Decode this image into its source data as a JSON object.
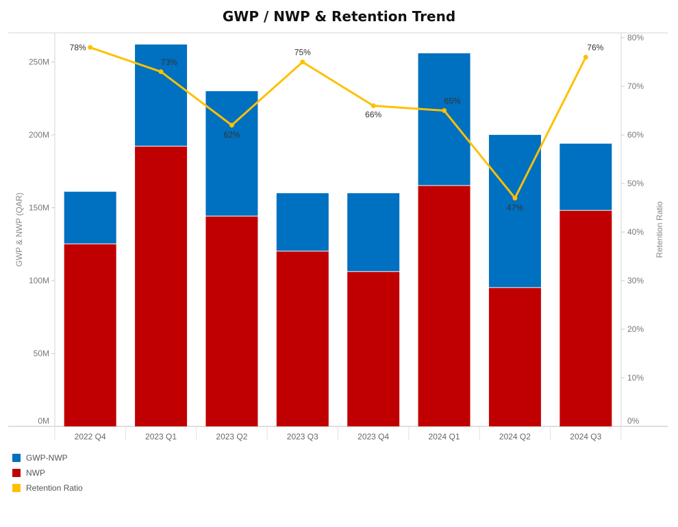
{
  "chart_data": {
    "type": "bar",
    "title": "GWP / NWP & Retention Trend",
    "ylabel": "GWP & NWP (QAR)",
    "y2label": "Retention Ratio",
    "ylim": [
      0,
      270000000
    ],
    "y2lim": [
      0,
      0.81
    ],
    "yticks": [
      0,
      50000000,
      100000000,
      150000000,
      200000000,
      250000000
    ],
    "ytick_labels": [
      "0M",
      "50M",
      "100M",
      "150M",
      "200M",
      "250M"
    ],
    "y2ticks": [
      0,
      0.1,
      0.2,
      0.3,
      0.4,
      0.5,
      0.6,
      0.7,
      0.8
    ],
    "y2tick_labels": [
      "0%",
      "10%",
      "20%",
      "30%",
      "40%",
      "50%",
      "60%",
      "70%",
      "80%"
    ],
    "categories": [
      "2022 Q4",
      "2023 Q1",
      "2023 Q2",
      "2023 Q3",
      "2023 Q4",
      "2024 Q1",
      "2024 Q2",
      "2024 Q3"
    ],
    "series": [
      {
        "name": "NWP",
        "type": "bar",
        "color": "#c00000",
        "values": [
          125000000,
          192000000,
          144000000,
          120000000,
          106000000,
          165000000,
          95000000,
          148000000
        ]
      },
      {
        "name": "GWP-NWP",
        "type": "bar",
        "color": "#0070c0",
        "values": [
          36000000,
          70000000,
          86000000,
          40000000,
          54000000,
          91000000,
          105000000,
          46000000
        ]
      },
      {
        "name": "Retention Ratio",
        "type": "line",
        "axis": "right",
        "color": "#ffc000",
        "values": [
          0.78,
          0.73,
          0.62,
          0.75,
          0.66,
          0.65,
          0.47,
          0.76
        ],
        "labels": [
          "78%",
          "73%",
          "62%",
          "75%",
          "66%",
          "65%",
          "47%",
          "76%"
        ]
      }
    ],
    "legend_position": "bottom-left",
    "grid": false
  },
  "legend": [
    {
      "label": "GWP-NWP",
      "color": "#0070c0"
    },
    {
      "label": "NWP",
      "color": "#c00000"
    },
    {
      "label": "Retention Ratio",
      "color": "#ffc000"
    }
  ]
}
